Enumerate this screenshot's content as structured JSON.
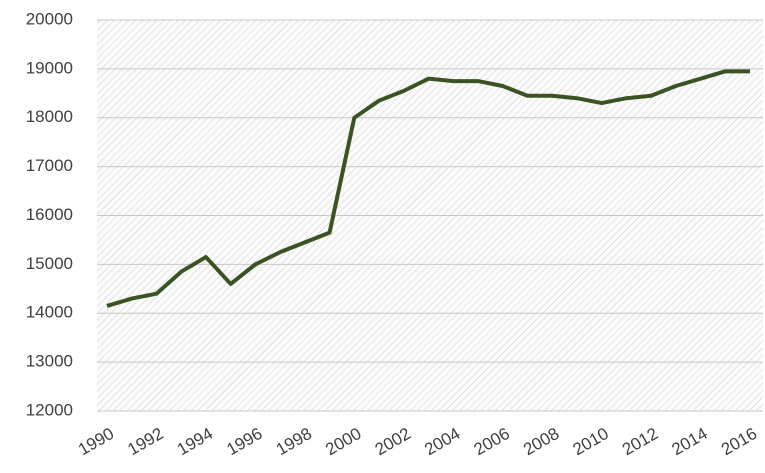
{
  "chart_data": {
    "type": "line",
    "categories": [
      "1990",
      null,
      "1992",
      null,
      "1994",
      null,
      "1996",
      null,
      "1998",
      null,
      "2000",
      null,
      "2002",
      null,
      "2004",
      null,
      "2006",
      null,
      "2008",
      null,
      "2010",
      null,
      "2012",
      null,
      "2014",
      null,
      "2016"
    ],
    "series": [
      {
        "name": null,
        "color": "#3b5323",
        "values": [
          14150,
          14300,
          14400,
          14850,
          15150,
          14600,
          15000,
          15250,
          15450,
          15650,
          18000,
          18350,
          18550,
          18800,
          18750,
          18750,
          18650,
          18450,
          18450,
          18400,
          18300,
          18400,
          18450,
          18650,
          18800,
          18950,
          18950
        ]
      }
    ],
    "ylim": [
      12000,
      20000
    ],
    "yticks": [
      12000,
      13000,
      14000,
      15000,
      16000,
      17000,
      18000,
      19000,
      20000
    ],
    "grid": true
  }
}
